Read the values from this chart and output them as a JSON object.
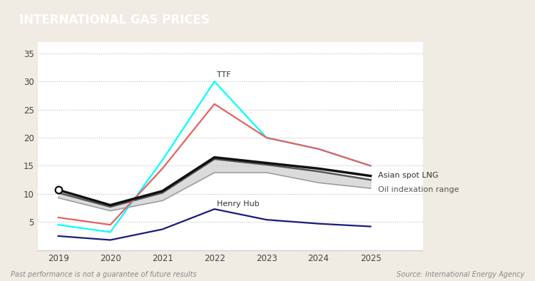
{
  "title": "INTERNATIONAL GAS PRICES",
  "title_bg_color": "#A07050",
  "title_text_color": "#FFFFFF",
  "bg_color": "#F0EBE3",
  "plot_bg_color": "#FFFFFF",
  "years": [
    2019,
    2020,
    2021,
    2022,
    2023,
    2024,
    2025
  ],
  "ttf": [
    4.5,
    3.2,
    16.0,
    30.0,
    20.0,
    18.0,
    15.0
  ],
  "red_line": [
    5.8,
    4.5,
    14.5,
    26.0,
    20.0,
    18.0,
    15.0
  ],
  "asian_spot_lng": [
    10.7,
    8.0,
    10.5,
    16.5,
    15.5,
    14.5,
    13.2
  ],
  "oil_index_high": [
    10.2,
    7.7,
    10.2,
    16.2,
    15.2,
    14.0,
    12.5
  ],
  "oil_index_low": [
    9.3,
    7.0,
    8.8,
    13.8,
    13.8,
    12.0,
    11.0
  ],
  "henry_hub": [
    2.5,
    1.8,
    3.7,
    7.3,
    5.4,
    4.7,
    4.2
  ],
  "ttf_color": "#00FFFF",
  "asian_lng_color": "#111111",
  "oil_index_fill_color": "#CCCCCC",
  "oil_index_line_color": "#555555",
  "henry_hub_color": "#1A1A7A",
  "red_line_color": "#E86060",
  "ylim": [
    0,
    37
  ],
  "yticks": [
    0,
    5,
    10,
    15,
    20,
    25,
    30,
    35
  ],
  "xlim_left": 2018.6,
  "xlim_right": 2026.0,
  "footnote_left": "Past performance is not a guarantee of future results",
  "footnote_right": "Source: International Energy Agency",
  "footnote_color": "#888888",
  "label_ttf": "TTF",
  "label_asian": "Asian spot LNG",
  "label_oil": "Oil indexation range",
  "label_henry": "Henry Hub"
}
